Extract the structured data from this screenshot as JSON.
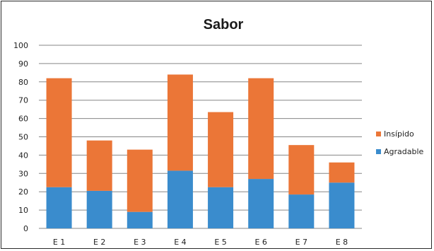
{
  "chart_data": {
    "type": "bar",
    "stacked": true,
    "title": "Sabor",
    "xlabel": "",
    "ylabel": "",
    "ylim": [
      0,
      100
    ],
    "yticks": [
      0,
      10,
      20,
      30,
      40,
      50,
      60,
      70,
      80,
      90,
      100
    ],
    "categories": [
      "E 1",
      "E 2",
      "E 3",
      "E 4",
      "E 5",
      "E 6",
      "E 7",
      "E 8"
    ],
    "series": [
      {
        "name": "Agradable",
        "color": "#3a8ccd",
        "values": [
          22.5,
          20.5,
          9,
          31.5,
          22.5,
          27,
          18.5,
          25
        ]
      },
      {
        "name": "Insípido",
        "color": "#eb7637",
        "values": [
          59.5,
          27.5,
          34,
          52.5,
          41,
          55,
          27,
          11
        ]
      }
    ],
    "legend_order": [
      "Insípido",
      "Agradable"
    ],
    "legend_position": "right",
    "grid": true
  }
}
